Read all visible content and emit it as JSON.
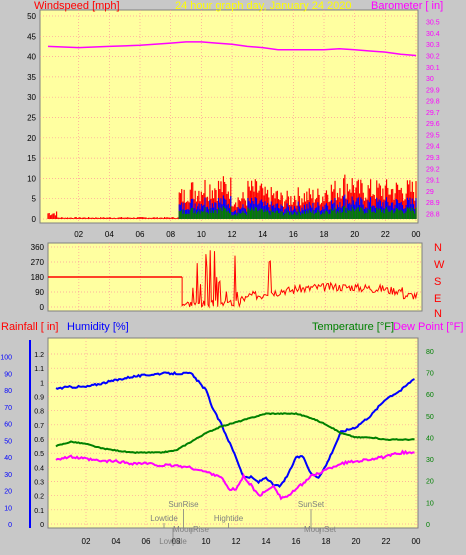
{
  "header": {
    "left_label": "Windspeed [mph]",
    "center_label": "24 hour graph day, January 24 2020",
    "right_label": "Barometer [ in]"
  },
  "compass_labels": [
    "N",
    "W",
    "S",
    "E",
    "N"
  ],
  "mid_header": {
    "left1": "Rainfall [ in]",
    "left2": "Humidity [%]",
    "right1": "Temperature [°F]",
    "right2": "Dew Point [°F]"
  },
  "colors": {
    "panel_bg": "#ffffa0",
    "outer_bg": "#c8c8c8",
    "grid": "#ff9999",
    "wind_left": "#ff0000",
    "barometer": "#ff00ff",
    "temperature": "#008000",
    "humidity": "#0000ff",
    "dewpoint": "#ff00ff",
    "rain": "#0000ff"
  },
  "events": [
    {
      "label": "SunRise",
      "hour": 8.5,
      "row": 1
    },
    {
      "label": "Lowtide",
      "hour": 7.2,
      "row": 2
    },
    {
      "label": "MoonRise",
      "hour": 9.0,
      "row": 3
    },
    {
      "label": "Hightide",
      "hour": 11.5,
      "row": 2
    },
    {
      "label": "SunSet",
      "hour": 17.0,
      "row": 1
    },
    {
      "label": "MoonSet",
      "hour": 17.6,
      "row": 3
    },
    {
      "label": "Lowtide",
      "hour": 7.8,
      "row": 4
    }
  ],
  "chart_data": [
    {
      "type": "line",
      "title": "24 hour graph day, January 24 2020",
      "xlabel": "",
      "x_ticks": [
        "02",
        "04",
        "06",
        "08",
        "10",
        "12",
        "14",
        "16",
        "18",
        "20",
        "22",
        "00"
      ],
      "y_left_label": "Windspeed [mph]",
      "y_left_ticks": [
        0,
        5,
        10,
        15,
        20,
        25,
        30,
        35,
        40,
        45,
        50
      ],
      "y_left_range": [
        0,
        50
      ],
      "y_right_label": "Barometer [ in]",
      "y_right_ticks": [
        "28.8",
        "28.9",
        "29",
        "29.1",
        "29.2",
        "29.3",
        "29.4",
        "29.5",
        "29.6",
        "29.7",
        "29.8",
        "29.9",
        "30",
        "30.1",
        "30.2",
        "30.3",
        "30.4",
        "30.5"
      ],
      "y_right_range": [
        28.75,
        30.55
      ],
      "series": [
        {
          "name": "Barometer",
          "axis": "right",
          "x": [
            0,
            2,
            4,
            6,
            8,
            9,
            10,
            11,
            12,
            13,
            14,
            15,
            16,
            17,
            18,
            19,
            20,
            21,
            22,
            23,
            24
          ],
          "values": [
            30.28,
            30.27,
            30.28,
            30.29,
            30.31,
            30.32,
            30.32,
            30.31,
            30.3,
            30.28,
            30.27,
            30.25,
            30.25,
            30.25,
            30.25,
            30.26,
            30.25,
            30.24,
            30.23,
            30.21,
            30.2
          ]
        }
      ],
      "wind_gust_max_mph": [
        2,
        1,
        0,
        0,
        0,
        7,
        8,
        8,
        8,
        10,
        11,
        11,
        7,
        10,
        8,
        7,
        8,
        8,
        10,
        12,
        10
      ]
    },
    {
      "type": "line",
      "title": "",
      "y_left_ticks": [
        0,
        90,
        180,
        270,
        360
      ],
      "y_left_range": [
        0,
        360
      ],
      "series": [
        {
          "x": [
            0,
            1,
            2,
            3,
            4,
            5,
            6,
            7,
            8,
            8.7
          ],
          "values": [
            180,
            180,
            180,
            180,
            180,
            180,
            180,
            180,
            180,
            180
          ]
        },
        {
          "x": [
            12,
            13,
            14,
            15,
            16,
            17,
            18,
            19,
            20,
            21,
            22,
            23,
            24
          ],
          "values": [
            50,
            70,
            90,
            100,
            110,
            118,
            120,
            120,
            115,
            110,
            100,
            70,
            60
          ]
        }
      ]
    },
    {
      "type": "line",
      "title": "",
      "y_left_ticks": [
        "0",
        "0.1",
        "0.2",
        "0.3",
        "0.4",
        "0.5",
        "0.6",
        "0.7",
        "0.8",
        "0.9",
        "1",
        "1.1",
        "1.2"
      ],
      "y_left_range": [
        0,
        1.2
      ],
      "y_humidity_ticks": [
        0,
        10,
        20,
        30,
        40,
        50,
        60,
        70,
        80,
        90,
        100
      ],
      "y_right_ticks": [
        0,
        10,
        20,
        30,
        40,
        50,
        60,
        70,
        80
      ],
      "y_right_range": [
        0,
        85
      ],
      "series": [
        {
          "name": "Humidity",
          "axis": "humidity",
          "x": [
            0,
            1,
            2,
            3,
            4,
            5,
            6,
            7,
            8,
            9,
            9.5,
            10,
            10.5,
            11,
            11.5,
            12,
            12.5,
            13,
            13.5,
            14,
            14.5,
            15,
            15.5,
            16,
            16.5,
            17,
            17.5,
            18,
            18.5,
            19,
            20,
            21,
            22,
            23,
            24
          ],
          "values": [
            81,
            82,
            82,
            84,
            86,
            88,
            89,
            90,
            90,
            90,
            85,
            80,
            68,
            60,
            50,
            40,
            28,
            28,
            25,
            28,
            23,
            23,
            30,
            40,
            40,
            30,
            28,
            35,
            45,
            55,
            58,
            65,
            75,
            80,
            88
          ]
        },
        {
          "name": "Temperature",
          "axis": "right",
          "x": [
            0,
            1,
            2,
            3,
            4,
            5,
            6,
            7,
            8,
            9,
            10,
            11,
            12,
            13,
            14,
            15,
            16,
            17,
            18,
            19,
            20,
            21,
            22,
            23,
            24
          ],
          "values": [
            36,
            38,
            37,
            35,
            34,
            33,
            33,
            33,
            34,
            38,
            42,
            45,
            47,
            49,
            51,
            51,
            51,
            49,
            46,
            42,
            40,
            40,
            39,
            39,
            39
          ]
        },
        {
          "name": "Dew Point",
          "axis": "right",
          "x": [
            0,
            1,
            2,
            3,
            4,
            5,
            6,
            7,
            8,
            9,
            10,
            11,
            11.5,
            12,
            12.5,
            13,
            13.5,
            14,
            14.5,
            15,
            15.5,
            16,
            16.5,
            17,
            18,
            19,
            20,
            21,
            22,
            23,
            24
          ],
          "values": [
            30,
            31,
            30,
            29,
            29,
            28,
            28,
            27,
            27,
            26,
            24,
            22,
            16,
            16,
            22,
            18,
            13,
            15,
            18,
            12,
            13,
            16,
            19,
            22,
            25,
            28,
            29,
            30,
            31,
            33,
            33
          ]
        }
      ]
    }
  ]
}
